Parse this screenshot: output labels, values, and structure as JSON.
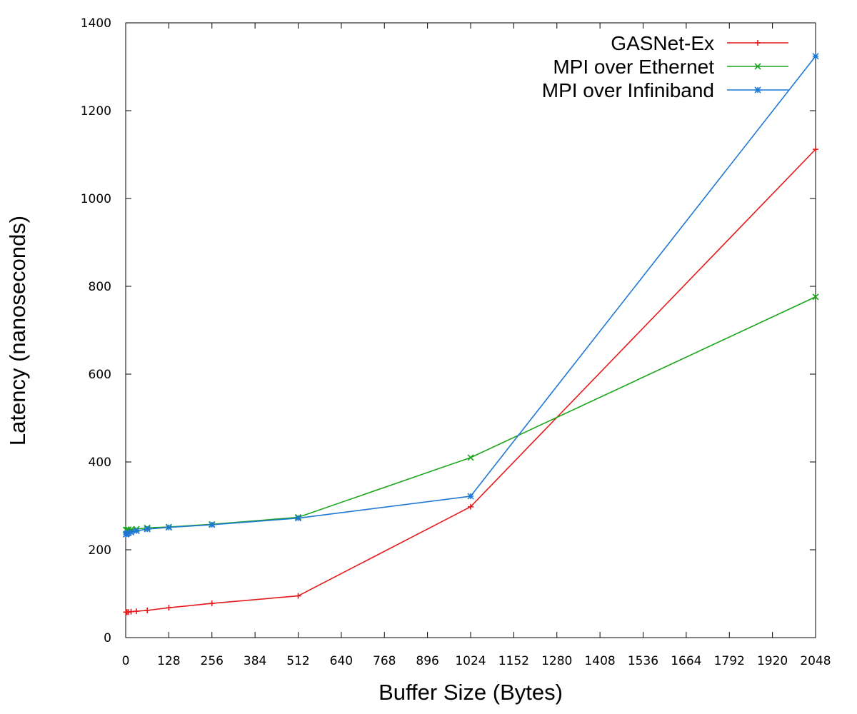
{
  "chart_data": {
    "type": "line",
    "xlabel": "Buffer Size (Bytes)",
    "ylabel": "Latency (nanoseconds)",
    "xlim": [
      0,
      2048
    ],
    "ylim": [
      0,
      1400
    ],
    "xticks": [
      0,
      128,
      256,
      384,
      512,
      640,
      768,
      896,
      1024,
      1152,
      1280,
      1408,
      1536,
      1664,
      1792,
      1920,
      2048
    ],
    "yticks": [
      0,
      200,
      400,
      600,
      800,
      1000,
      1200,
      1400
    ],
    "grid": false,
    "legend_position": "top-right",
    "series": [
      {
        "name": "GASNet-Ex",
        "color": "#e41a1c",
        "marker": "plus",
        "x": [
          1,
          2,
          4,
          8,
          16,
          32,
          64,
          128,
          256,
          512,
          1024,
          2048
        ],
        "values": [
          58,
          58,
          58,
          58,
          59,
          60,
          62,
          68,
          78,
          95,
          298,
          1112
        ]
      },
      {
        "name": "MPI over Ethernet",
        "color": "#1aa51a",
        "marker": "x",
        "x": [
          1,
          2,
          4,
          8,
          16,
          32,
          64,
          128,
          256,
          512,
          1024,
          2048
        ],
        "values": [
          245,
          245,
          245,
          246,
          246,
          247,
          250,
          252,
          258,
          274,
          410,
          776
        ]
      },
      {
        "name": "MPI over Infiniband",
        "color": "#1f77d4",
        "marker": "star",
        "x": [
          1,
          2,
          4,
          8,
          16,
          32,
          64,
          128,
          256,
          512,
          1024,
          2048
        ],
        "values": [
          235,
          236,
          237,
          238,
          240,
          243,
          247,
          251,
          257,
          272,
          322,
          1324
        ]
      }
    ]
  }
}
